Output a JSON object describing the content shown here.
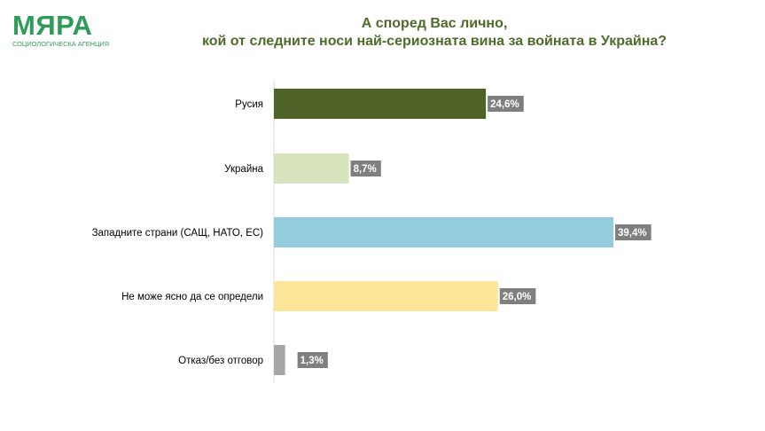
{
  "logo": {
    "mark": "МЯРА",
    "tagline": "СОЦИОЛОГИЧЕСКА АГЕНЦИЯ",
    "color": "#2e9b57"
  },
  "header": {
    "title_line1": "А според Вас лично,",
    "title_line2": "кой от следните носи най-сериозната вина за войната в Украйна?"
  },
  "chart_data": {
    "type": "bar",
    "orientation": "horizontal",
    "categories": [
      "Русия",
      "Украйна",
      "Западните страни (САЩ, НАТО, ЕС)",
      "Не може ясно да се определи",
      "Отказ/без отговор"
    ],
    "values": [
      24.6,
      8.7,
      39.4,
      26.0,
      1.3
    ],
    "value_labels": [
      "24,6%",
      "8,7%",
      "39,4%",
      "26,0%",
      "1,3%"
    ],
    "colors": [
      "#4f6228",
      "#d7e4bd",
      "#93cddd",
      "#fee599",
      "#a6a6a6"
    ],
    "label_box_color": "#7f7f7f",
    "xlim": [
      0,
      40
    ],
    "unit": "%",
    "grid": false,
    "legend": "none"
  }
}
